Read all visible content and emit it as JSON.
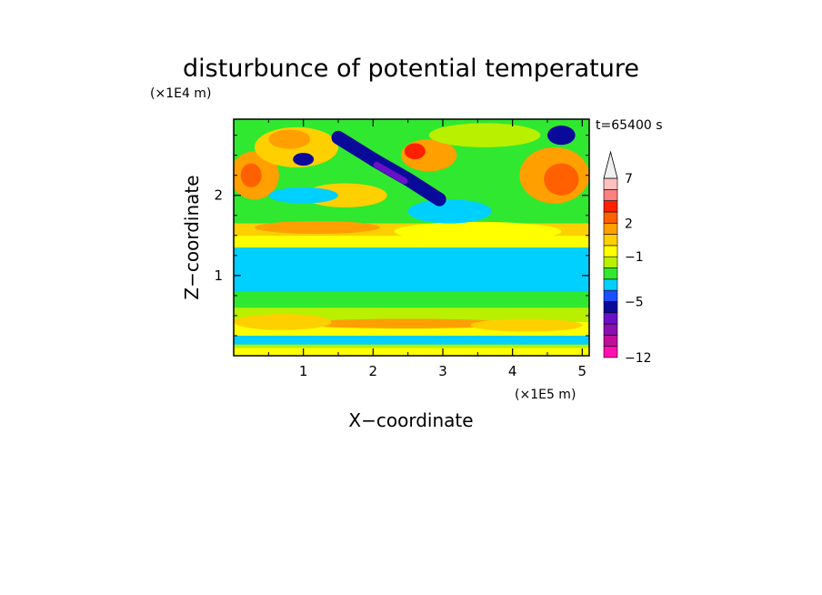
{
  "chart_data": {
    "type": "heatmap",
    "title": "disturbunce of potential temperature",
    "time_label": "t=65400 s",
    "xlabel": "X−coordinate",
    "ylabel": "Z−coordinate",
    "x_scale_label": "(×1E5 m)",
    "y_scale_label": "(×1E4 m)",
    "xlim": [
      0,
      5.1
    ],
    "ylim": [
      0,
      2.95
    ],
    "x_ticks": [
      {
        "value": 1,
        "label": "1"
      },
      {
        "value": 2,
        "label": "2"
      },
      {
        "value": 3,
        "label": "3"
      },
      {
        "value": 4,
        "label": "4"
      },
      {
        "value": 5,
        "label": "5"
      }
    ],
    "y_ticks": [
      {
        "value": 1,
        "label": "1"
      },
      {
        "value": 2,
        "label": "2"
      }
    ],
    "colorbar": {
      "colors": [
        "#ff10b0",
        "#c0109a",
        "#8a10b0",
        "#6a10c8",
        "#0a0a9a",
        "#1a50ff",
        "#00d0ff",
        "#30e830",
        "#b8f000",
        "#ffff00",
        "#ffd000",
        "#ffa000",
        "#ff6000",
        "#ff2000",
        "#ff8080",
        "#ffc0c0",
        "#f0f0f0"
      ],
      "labels": [
        {
          "boundary": 16,
          "text": "7"
        },
        {
          "boundary": 12,
          "text": "2"
        },
        {
          "boundary": 9,
          "text": "−1"
        },
        {
          "boundary": 5,
          "text": "−5"
        },
        {
          "boundary": 0,
          "text": "−12"
        }
      ]
    },
    "field": {
      "background": "#30e830",
      "bands": [
        {
          "z": [
            0.0,
            0.1
          ],
          "color": "#ffff00"
        },
        {
          "z": [
            0.1,
            0.14
          ],
          "color": "#b8f000"
        },
        {
          "z": [
            0.14,
            0.25
          ],
          "color": "#00d0ff"
        },
        {
          "z": [
            0.25,
            0.42
          ],
          "color": "#ffff00"
        },
        {
          "z": [
            0.42,
            0.6
          ],
          "color": "#b8f000"
        },
        {
          "z": [
            0.6,
            0.8
          ],
          "color": "#30e830"
        },
        {
          "z": [
            0.8,
            0.95
          ],
          "color": "#00d0ff"
        },
        {
          "z": [
            0.95,
            1.35
          ],
          "color": "#00d0ff"
        },
        {
          "z": [
            1.35,
            1.5
          ],
          "color": "#ffff00"
        },
        {
          "z": [
            1.5,
            1.65
          ],
          "color": "#ffd000"
        }
      ],
      "blobs": [
        {
          "x": 2.5,
          "z": 0.4,
          "rx": 1.6,
          "rz": 0.06,
          "color": "#ffa000"
        },
        {
          "x": 0.7,
          "z": 0.42,
          "rx": 0.7,
          "rz": 0.1,
          "color": "#ffd000"
        },
        {
          "x": 4.2,
          "z": 0.38,
          "rx": 0.8,
          "rz": 0.08,
          "color": "#ffd000"
        },
        {
          "x": 1.2,
          "z": 1.6,
          "rx": 0.9,
          "rz": 0.08,
          "color": "#ffa000"
        },
        {
          "x": 3.5,
          "z": 1.55,
          "rx": 1.2,
          "rz": 0.12,
          "color": "#ffff00"
        },
        {
          "x": 0.3,
          "z": 2.25,
          "rx": 0.35,
          "rz": 0.3,
          "color": "#ffa000"
        },
        {
          "x": 0.25,
          "z": 2.25,
          "rx": 0.15,
          "rz": 0.15,
          "color": "#ff6000"
        },
        {
          "x": 0.9,
          "z": 2.6,
          "rx": 0.6,
          "rz": 0.25,
          "color": "#ffd000"
        },
        {
          "x": 0.8,
          "z": 2.7,
          "rx": 0.3,
          "rz": 0.12,
          "color": "#ffa000"
        },
        {
          "x": 1.6,
          "z": 2.0,
          "rx": 0.6,
          "rz": 0.15,
          "color": "#ffd000"
        },
        {
          "x": 2.8,
          "z": 2.5,
          "rx": 0.4,
          "rz": 0.2,
          "color": "#ffa000"
        },
        {
          "x": 2.6,
          "z": 2.55,
          "rx": 0.15,
          "rz": 0.1,
          "color": "#ff2000"
        },
        {
          "x": 4.6,
          "z": 2.25,
          "rx": 0.5,
          "rz": 0.35,
          "color": "#ffa000"
        },
        {
          "x": 4.7,
          "z": 2.2,
          "rx": 0.25,
          "rz": 0.2,
          "color": "#ff6000"
        },
        {
          "x": 3.6,
          "z": 2.75,
          "rx": 0.8,
          "rz": 0.15,
          "color": "#b8f000"
        },
        {
          "x": 4.7,
          "z": 2.75,
          "rx": 0.2,
          "rz": 0.12,
          "color": "#0a0a9a"
        },
        {
          "x": 3.4,
          "z": 2.0,
          "rx": 0.7,
          "rz": 0.25,
          "color": "#30e830"
        },
        {
          "x": 3.1,
          "z": 1.8,
          "rx": 0.6,
          "rz": 0.15,
          "color": "#00d0ff"
        },
        {
          "x": 1.0,
          "z": 2.0,
          "rx": 0.5,
          "rz": 0.1,
          "color": "#00d0ff"
        },
        {
          "x": 1.0,
          "z": 2.45,
          "rx": 0.15,
          "rz": 0.08,
          "color": "#0a0a9a"
        }
      ],
      "streak": [
        {
          "points": [
            [
              1.5,
              2.72
            ],
            [
              2.0,
              2.45
            ],
            [
              2.5,
              2.2
            ],
            [
              2.95,
              1.95
            ]
          ],
          "width": 0.17,
          "color": "#0a0a9a"
        },
        {
          "points": [
            [
              2.05,
              2.38
            ],
            [
              2.45,
              2.18
            ]
          ],
          "width": 0.08,
          "color": "#6a10c8"
        }
      ]
    }
  }
}
